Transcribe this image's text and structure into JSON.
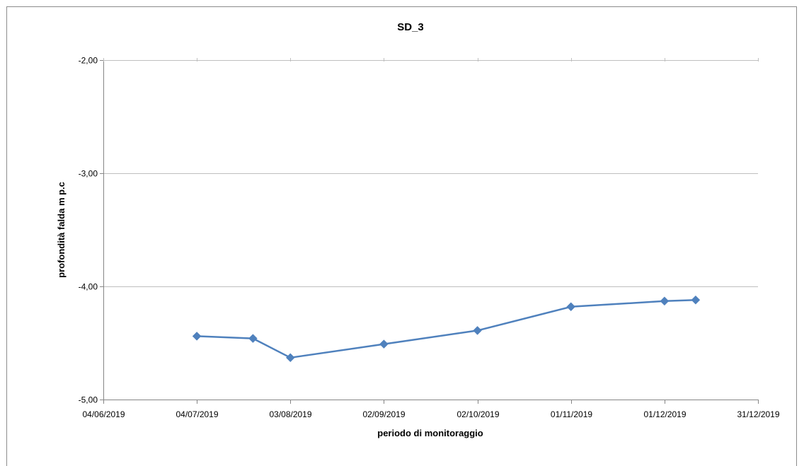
{
  "chart_data": {
    "type": "line",
    "title": "SD_3",
    "xlabel": "periodo di monitoraggio",
    "ylabel": "profondità falda m p.c",
    "x_tick_labels": [
      "04/06/2019",
      "04/07/2019",
      "03/08/2019",
      "02/09/2019",
      "02/10/2019",
      "01/11/2019",
      "01/12/2019",
      "31/12/2019"
    ],
    "x_ticks": [
      "2019-06-04",
      "2019-07-04",
      "2019-08-03",
      "2019-09-02",
      "2019-10-02",
      "2019-11-01",
      "2019-12-01",
      "2019-12-31"
    ],
    "y_tick_labels": [
      "-2,00",
      "-3,00",
      "-4,00",
      "-5,00"
    ],
    "y_ticks": [
      -2,
      -3,
      -4,
      -5
    ],
    "xlim": [
      "2019-06-04",
      "2019-12-31"
    ],
    "ylim": [
      -5,
      -2
    ],
    "grid": "horizontal",
    "legend": "none",
    "series": [
      {
        "color": "#4f81bd",
        "points": [
          {
            "x": "2019-07-04",
            "y": -4.44
          },
          {
            "x": "2019-07-22",
            "y": -4.46
          },
          {
            "x": "2019-08-03",
            "y": -4.63
          },
          {
            "x": "2019-09-02",
            "y": -4.51
          },
          {
            "x": "2019-10-02",
            "y": -4.39
          },
          {
            "x": "2019-11-01",
            "y": -4.18
          },
          {
            "x": "2019-12-01",
            "y": -4.13
          },
          {
            "x": "2019-12-11",
            "y": -4.12
          }
        ]
      }
    ]
  }
}
